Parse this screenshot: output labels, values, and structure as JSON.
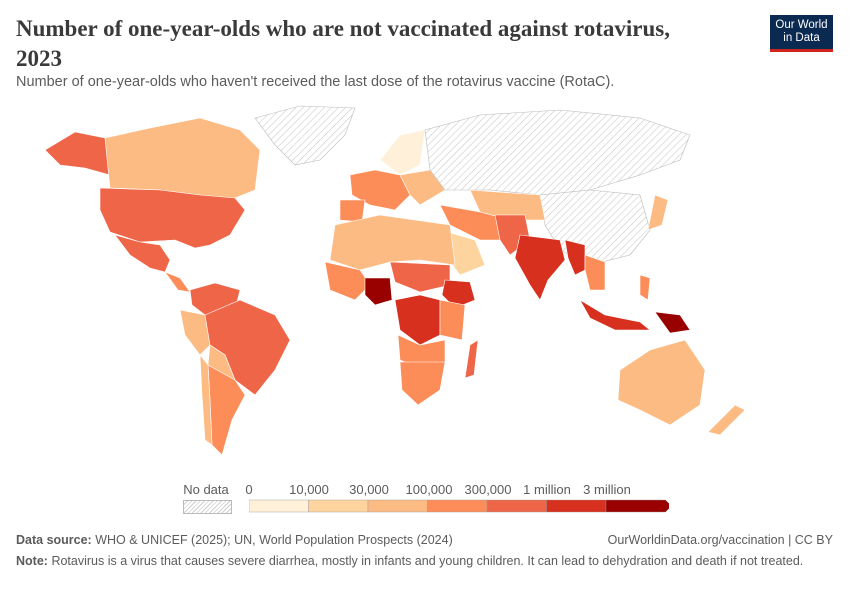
{
  "header": {
    "title": "Number of one-year-olds who are not vaccinated against rotavirus, 2023",
    "subtitle": "Number of one-year-olds who haven't received the last dose of the rotavirus vaccine (RotaC).",
    "logo_text": "Our World in Data"
  },
  "legend": {
    "no_data_label": "No data",
    "bins": [
      {
        "label": "0",
        "color": "#fef0d9"
      },
      {
        "label": "10,000",
        "color": "#fdd49e"
      },
      {
        "label": "30,000",
        "color": "#fdbb84"
      },
      {
        "label": "100,000",
        "color": "#fc8d59"
      },
      {
        "label": "300,000",
        "color": "#ef6548"
      },
      {
        "label": "1 million",
        "color": "#d7301f"
      },
      {
        "label": "3 million",
        "color": "#990000"
      }
    ]
  },
  "footer": {
    "source_label": "Data source:",
    "source_text": "WHO & UNICEF (2025); UN, World Population Prospects (2024)",
    "url": "OurWorldinData.org/vaccination | CC BY",
    "note_label": "Note:",
    "note_text": "Rotavirus is a virus that causes severe diarrhea, mostly in infants and young children. It can lead to dehydration and death if not treated."
  }
}
